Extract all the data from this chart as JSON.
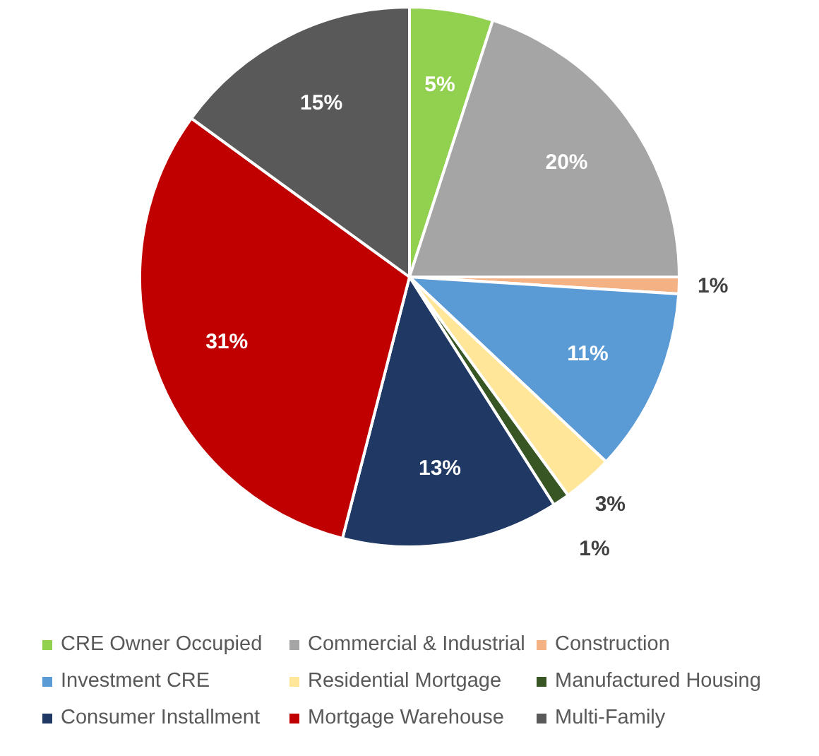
{
  "chart_data": {
    "type": "pie",
    "categories": [
      "CRE Owner Occupied",
      "Commercial & Industrial",
      "Construction",
      "Investment CRE",
      "Residential Mortgage",
      "Manufactured Housing",
      "Consumer Installment",
      "Mortgage Warehouse",
      "Multi-Family"
    ],
    "values": [
      5,
      20,
      1,
      11,
      3,
      1,
      13,
      31,
      15
    ],
    "colors": [
      "#92d050",
      "#a5a5a5",
      "#f4b183",
      "#5b9bd5",
      "#ffe699",
      "#375623",
      "#203864",
      "#c00000",
      "#595959"
    ],
    "value_labels": [
      "5%",
      "20%",
      "1%",
      "11%",
      "3%",
      "1%",
      "13%",
      "31%",
      "15%"
    ],
    "legend": "bottom"
  }
}
